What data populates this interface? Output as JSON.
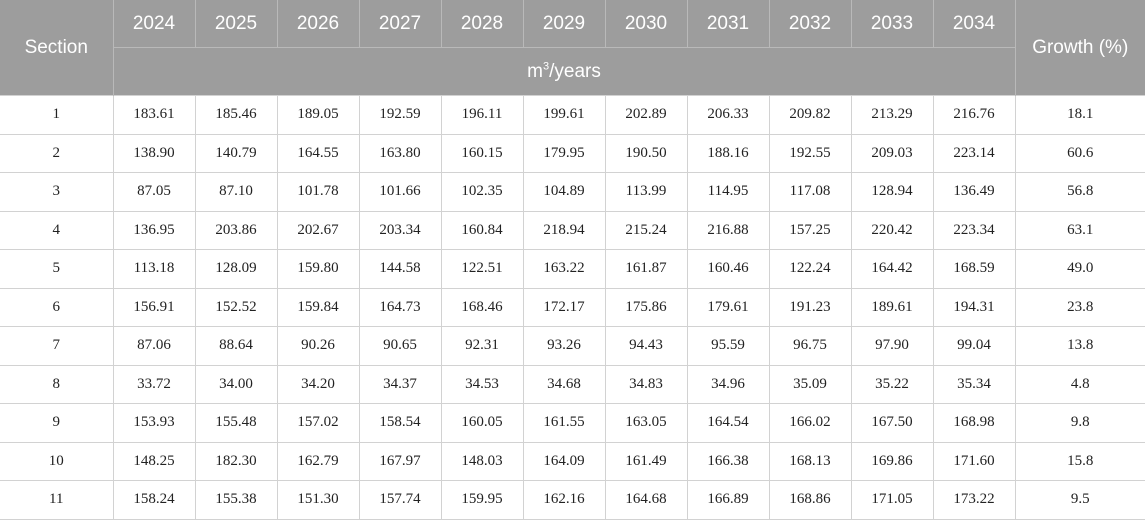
{
  "table": {
    "section_header": "Section",
    "growth_header": "Growth (%)",
    "years": [
      "2024",
      "2025",
      "2026",
      "2027",
      "2028",
      "2029",
      "2030",
      "2031",
      "2032",
      "2033",
      "2034"
    ],
    "unit_base": "m",
    "unit_exp": "3",
    "unit_rest": "/years",
    "rows": [
      {
        "section": "1",
        "values": [
          "183.61",
          "185.46",
          "189.05",
          "192.59",
          "196.11",
          "199.61",
          "202.89",
          "206.33",
          "209.82",
          "213.29",
          "216.76"
        ],
        "growth": "18.1"
      },
      {
        "section": "2",
        "values": [
          "138.90",
          "140.79",
          "164.55",
          "163.80",
          "160.15",
          "179.95",
          "190.50",
          "188.16",
          "192.55",
          "209.03",
          "223.14"
        ],
        "growth": "60.6"
      },
      {
        "section": "3",
        "values": [
          "87.05",
          "87.10",
          "101.78",
          "101.66",
          "102.35",
          "104.89",
          "113.99",
          "114.95",
          "117.08",
          "128.94",
          "136.49"
        ],
        "growth": "56.8"
      },
      {
        "section": "4",
        "values": [
          "136.95",
          "203.86",
          "202.67",
          "203.34",
          "160.84",
          "218.94",
          "215.24",
          "216.88",
          "157.25",
          "220.42",
          "223.34"
        ],
        "growth": "63.1"
      },
      {
        "section": "5",
        "values": [
          "113.18",
          "128.09",
          "159.80",
          "144.58",
          "122.51",
          "163.22",
          "161.87",
          "160.46",
          "122.24",
          "164.42",
          "168.59"
        ],
        "growth": "49.0"
      },
      {
        "section": "6",
        "values": [
          "156.91",
          "152.52",
          "159.84",
          "164.73",
          "168.46",
          "172.17",
          "175.86",
          "179.61",
          "191.23",
          "189.61",
          "194.31"
        ],
        "growth": "23.8"
      },
      {
        "section": "7",
        "values": [
          "87.06",
          "88.64",
          "90.26",
          "90.65",
          "92.31",
          "93.26",
          "94.43",
          "95.59",
          "96.75",
          "97.90",
          "99.04"
        ],
        "growth": "13.8"
      },
      {
        "section": "8",
        "values": [
          "33.72",
          "34.00",
          "34.20",
          "34.37",
          "34.53",
          "34.68",
          "34.83",
          "34.96",
          "35.09",
          "35.22",
          "35.34"
        ],
        "growth": "4.8"
      },
      {
        "section": "9",
        "values": [
          "153.93",
          "155.48",
          "157.02",
          "158.54",
          "160.05",
          "161.55",
          "163.05",
          "164.54",
          "166.02",
          "167.50",
          "168.98"
        ],
        "growth": "9.8"
      },
      {
        "section": "10",
        "values": [
          "148.25",
          "182.30",
          "162.79",
          "167.97",
          "148.03",
          "164.09",
          "161.49",
          "166.38",
          "168.13",
          "169.86",
          "171.60"
        ],
        "growth": "15.8"
      },
      {
        "section": "11",
        "values": [
          "158.24",
          "155.38",
          "151.30",
          "157.74",
          "159.95",
          "162.16",
          "164.68",
          "166.89",
          "168.86",
          "171.05",
          "173.22"
        ],
        "growth": "9.5"
      }
    ]
  }
}
